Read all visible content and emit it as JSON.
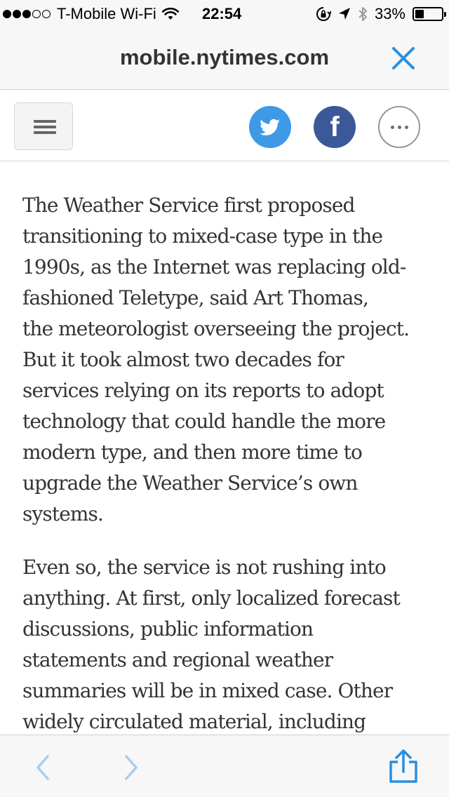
{
  "status_bar": {
    "signal_bars_filled": 3,
    "signal_bars_total": 5,
    "carrier": "T-Mobile Wi-Fi",
    "time": "22:54",
    "battery_percent_text": "33%",
    "battery_level": 0.33,
    "icons": [
      "signal-dots-icon",
      "wifi-icon",
      "rotation-lock-icon",
      "location-arrow-icon",
      "bluetooth-icon",
      "battery-icon"
    ]
  },
  "url_bar": {
    "domain": "mobile.nytimes.com",
    "close_icon": "close-icon",
    "accent_color": "#2a8fe0"
  },
  "toolbar": {
    "menu_icon": "hamburger-menu-icon",
    "share_buttons": [
      {
        "name": "twitter",
        "icon": "twitter-bird-icon",
        "color": "#3e99e6"
      },
      {
        "name": "facebook",
        "icon": "facebook-f-icon",
        "color": "#3b5998"
      },
      {
        "name": "more",
        "icon": "ellipsis-icon",
        "color": "#56758e"
      }
    ]
  },
  "article": {
    "paragraphs": [
      {
        "lines": [
          "The Weather Service first proposed",
          "transitioning to mixed-case type in the",
          "1990s, as the Internet was replacing old-",
          "fashioned Teletype, said Art Thomas,",
          "the meteorologist overseeing the project.",
          "But it took almost two decades for",
          "services relying on its reports to adopt",
          "technology that could handle the more",
          "modern type, and then more time to",
          "upgrade the Weather Service’s own",
          "systems."
        ]
      },
      {
        "lines": [
          "Even so, the service is not rushing into",
          "anything. At first, only localized forecast",
          "discussions, public information",
          "statements and regional weather",
          "summaries will be in mixed case. Other",
          "widely circulated material, including"
        ]
      }
    ]
  },
  "bottom_bar": {
    "back_icon": "chevron-left-icon",
    "forward_icon": "chevron-right-icon",
    "share_icon": "share-icon",
    "nav_color": "#a9cdf0",
    "share_color": "#2a8fe0"
  }
}
